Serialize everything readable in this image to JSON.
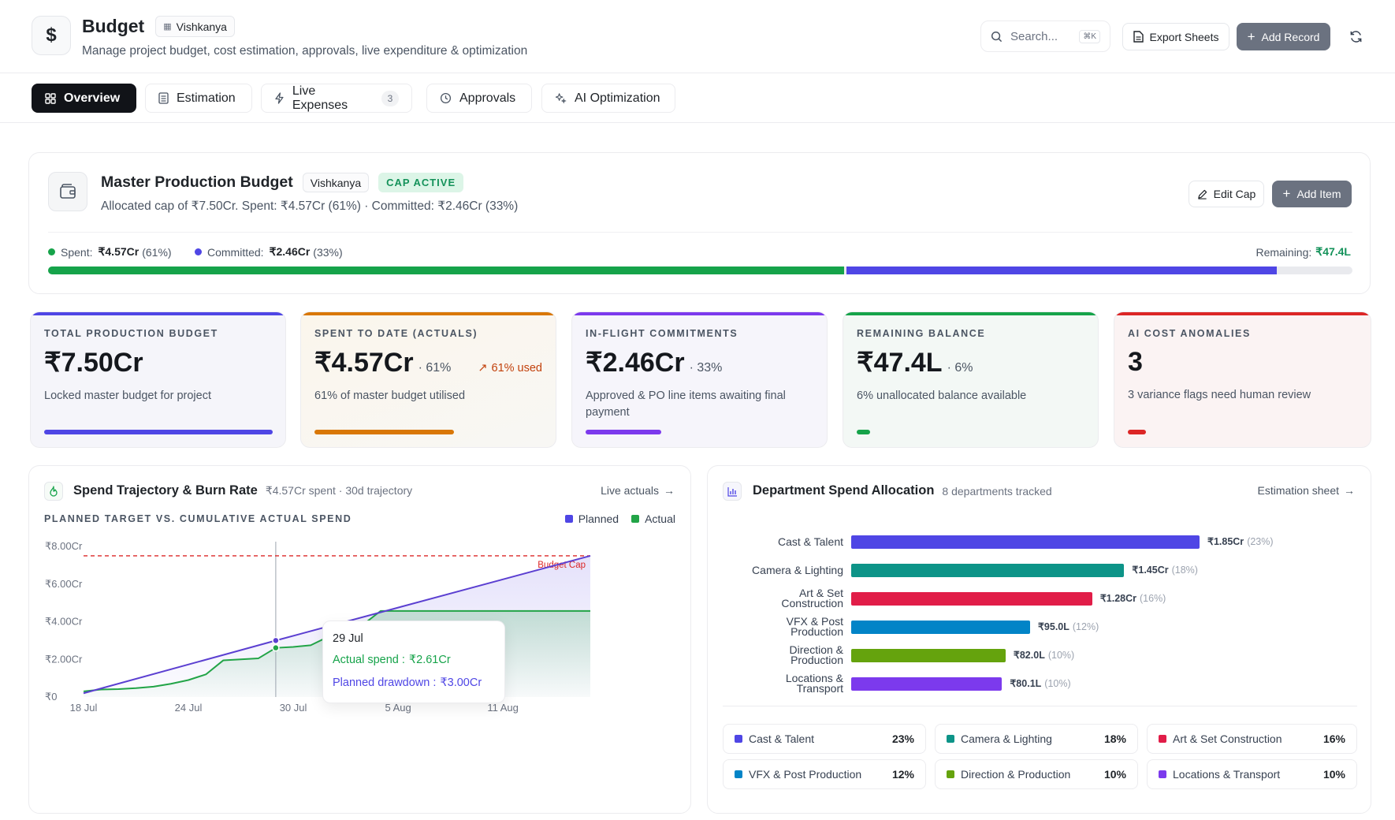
{
  "header": {
    "title": "Budget",
    "project_chip": "Vishkanya",
    "subtitle": "Manage project budget, cost estimation, approvals, live expenditure & optimization",
    "search_placeholder": "Search...",
    "search_shortcut": "⌘K",
    "export_label": "Export Sheets",
    "add_record_label": "Add Record"
  },
  "tabs": [
    {
      "label": "Overview",
      "icon": "grid-icon",
      "active": true
    },
    {
      "label": "Estimation",
      "icon": "sheet-icon"
    },
    {
      "label": "Live Expenses",
      "icon": "bolt-icon",
      "badge": "3"
    },
    {
      "label": "Approvals",
      "icon": "clock-icon"
    },
    {
      "label": "AI Optimization",
      "icon": "sparkle-icon"
    }
  ],
  "master": {
    "title": "Master Production Budget",
    "project_chip": "Vishkanya",
    "status_chip": "CAP ACTIVE",
    "subtitle": "Allocated cap of ₹7.50Cr. Spent: ₹4.57Cr (61%) · Committed: ₹2.46Cr (33%)",
    "edit_cap_label": "Edit Cap",
    "add_item_label": "Add Item",
    "spent_label": "Spent:",
    "spent_value": "₹4.57Cr",
    "spent_pct": "(61%)",
    "committed_label": "Committed:",
    "committed_value": "₹2.46Cr",
    "committed_pct": "(33%)",
    "remaining_label": "Remaining:",
    "remaining_value": "₹47.4L",
    "spent_fraction": 0.61,
    "committed_fraction": 0.33
  },
  "stats": [
    {
      "label": "TOTAL PRODUCTION BUDGET",
      "value": "₹7.50Cr",
      "pct": "",
      "extra": "",
      "desc": "Locked master budget for project",
      "accent": "#4f46e5",
      "bar_fraction": 1.0
    },
    {
      "label": "SPENT TO DATE (ACTUALS)",
      "value": "₹4.57Cr",
      "pct": "· 61%",
      "extra": "61% used",
      "desc": "61% of master budget utilised",
      "accent": "#d97706",
      "bar_fraction": 0.61
    },
    {
      "label": "IN-FLIGHT COMMITMENTS",
      "value": "₹2.46Cr",
      "pct": "· 33%",
      "extra": "",
      "desc": "Approved & PO line items awaiting final payment",
      "accent": "#7c3aed",
      "bar_fraction": 0.33
    },
    {
      "label": "REMAINING BALANCE",
      "value": "₹47.4L",
      "pct": "· 6%",
      "extra": "",
      "desc": "6% unallocated balance available",
      "accent": "#16a34a",
      "bar_fraction": 0.06
    },
    {
      "label": "AI COST ANOMALIES",
      "value": "3",
      "pct": "",
      "extra": "",
      "desc": "3 variance flags need human review",
      "accent": "#dc2626",
      "bar_fraction": 0.08
    }
  ],
  "trajectory": {
    "title": "Spend Trajectory & Burn Rate",
    "meta": "₹4.57Cr spent · 30d trajectory",
    "link": "Live actuals",
    "subhead": "PLANNED TARGET VS. CUMULATIVE ACTUAL SPEND",
    "legend_planned": "Planned",
    "legend_actual": "Actual",
    "cap_label": "Budget Cap",
    "tooltip_date": "29 Jul",
    "tooltip_actual_label": "Actual spend :",
    "tooltip_actual_value": "₹2.61Cr",
    "tooltip_planned_label": "Planned drawdown :",
    "tooltip_planned_value": "₹3.00Cr"
  },
  "chart_data": [
    {
      "type": "line",
      "title": "Spend Trajectory & Burn Rate",
      "y_ticks": [
        "₹0",
        "₹2.00Cr",
        "₹4.00Cr",
        "₹6.00Cr",
        "₹8.00Cr"
      ],
      "x_ticks": [
        "18 Jul",
        "24 Jul",
        "30 Jul",
        "5 Aug",
        "11 Aug"
      ],
      "ylim": [
        0,
        8
      ],
      "budget_cap": 7.5,
      "series": [
        {
          "name": "Planned",
          "color": "#5b3fd1",
          "x": [
            0,
            11,
            29
          ],
          "y": [
            0.2,
            3.0,
            7.5
          ]
        },
        {
          "name": "Actual",
          "color": "#22a447",
          "x": [
            0,
            1,
            2,
            3,
            4,
            5,
            6,
            7,
            8,
            9,
            10,
            11,
            12,
            13,
            14,
            15,
            16,
            17,
            18,
            19,
            20,
            21,
            22,
            23,
            24,
            25,
            26,
            27,
            28,
            29
          ],
          "y": [
            0.3,
            0.4,
            0.42,
            0.47,
            0.55,
            0.7,
            0.9,
            1.2,
            1.95,
            2.0,
            2.05,
            2.61,
            2.66,
            2.75,
            3.2,
            3.55,
            3.85,
            4.57,
            4.57,
            4.57,
            4.57,
            4.57,
            4.57,
            4.57,
            4.57,
            4.57,
            4.57,
            4.57,
            4.57,
            4.57
          ]
        }
      ],
      "hover_index": 11
    },
    {
      "type": "bar",
      "title": "Department Spend Allocation",
      "categories": [
        "Cast & Talent",
        "Camera & Lighting",
        "Art & Set Construction",
        "VFX & Post Production",
        "Direction & Production",
        "Locations & Transport"
      ],
      "labels": [
        [
          "Cast & Talent"
        ],
        [
          "Camera & Lighting"
        ],
        [
          "Art & Set",
          "Construction"
        ],
        [
          "VFX & Post",
          "Production"
        ],
        [
          "Direction &",
          "Production"
        ],
        [
          "Locations &",
          "Transport"
        ]
      ],
      "values": [
        1.85,
        1.45,
        1.28,
        0.95,
        0.82,
        0.801
      ],
      "value_labels": [
        "₹1.85Cr",
        "₹1.45Cr",
        "₹1.28Cr",
        "₹95.0L",
        "₹82.0L",
        "₹80.1L"
      ],
      "pct_labels": [
        "(23%)",
        "(18%)",
        "(16%)",
        "(12%)",
        "(10%)",
        "(10%)"
      ],
      "colors": [
        "#4f46e5",
        "#0d9488",
        "#e11d48",
        "#0284c7",
        "#65a30d",
        "#7c3aed"
      ]
    }
  ],
  "departments": {
    "title": "Department Spend Allocation",
    "meta": "8 departments tracked",
    "link": "Estimation sheet",
    "legend": [
      {
        "name": "Cast & Talent",
        "pct": "23%",
        "color": "#4f46e5"
      },
      {
        "name": "Camera & Lighting",
        "pct": "18%",
        "color": "#0d9488"
      },
      {
        "name": "Art & Set Construction",
        "pct": "16%",
        "color": "#e11d48"
      },
      {
        "name": "VFX & Post Production",
        "pct": "12%",
        "color": "#0284c7"
      },
      {
        "name": "Direction & Production",
        "pct": "10%",
        "color": "#65a30d"
      },
      {
        "name": "Locations & Transport",
        "pct": "10%",
        "color": "#7c3aed"
      }
    ]
  }
}
